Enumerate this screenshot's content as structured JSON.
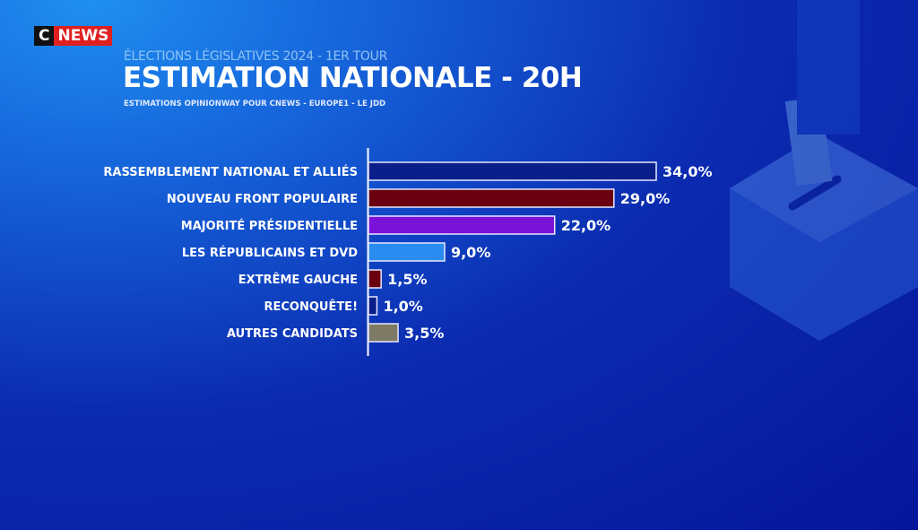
{
  "logo": {
    "c": "C",
    "news": "NEWS"
  },
  "header": {
    "kicker": "ÉLECTIONS LÉGISLATIVES 2024 - 1ER TOUR",
    "title": "ESTIMATION NATIONALE - 20H",
    "source": "ESTIMATIONS OPINIONWAY POUR CNEWS - EUROPE1 - LE JDD"
  },
  "chart_data": {
    "type": "bar",
    "orientation": "horizontal",
    "categories": [
      "RASSEMBLEMENT NATIONAL ET ALLIÉS",
      "NOUVEAU FRONT POPULAIRE",
      "MAJORITÉ PRÉSIDENTIELLE",
      "LES RÉPUBLICAINS ET DVD",
      "EXTRÊME GAUCHE",
      "RECONQUÊTE!",
      "AUTRES CANDIDATS"
    ],
    "values": [
      34.0,
      29.0,
      22.0,
      9.0,
      1.5,
      1.0,
      3.5
    ],
    "value_labels": [
      "34,0%",
      "29,0%",
      "22,0%",
      "9,0%",
      "1,5%",
      "1,0%",
      "3,5%"
    ],
    "colors": [
      "#0a1f8a",
      "#6b0010",
      "#7b12d8",
      "#2a8cf0",
      "#6b0010",
      "#0a1f8a",
      "#7d7a66"
    ],
    "unit": "%",
    "grid": false,
    "legend": "none"
  }
}
